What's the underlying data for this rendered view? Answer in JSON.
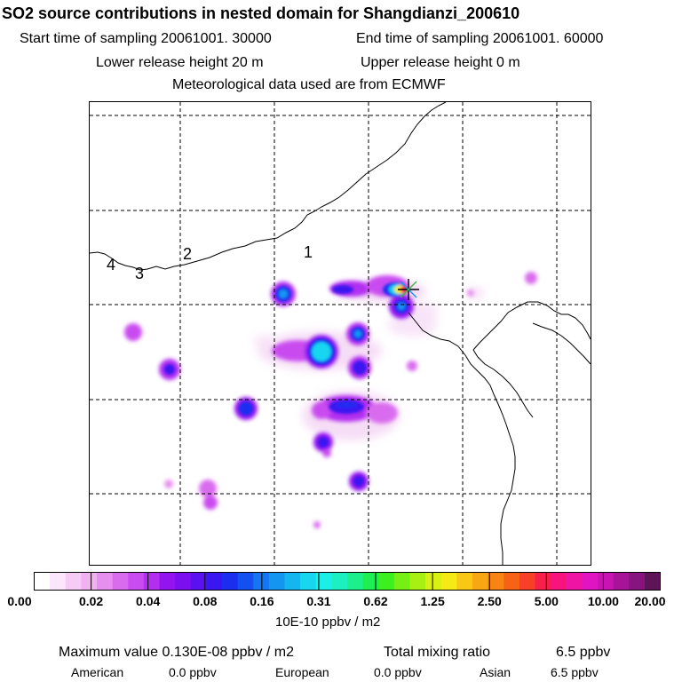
{
  "header": {
    "title": "SO2 source contributions in nested domain for Shangdianzi_200610",
    "start_label": "Start time of sampling 20061001. 30000",
    "end_label": "End time of sampling 20061001. 60000",
    "lower_release": "Lower release height   20 m",
    "upper_release": "Upper release height    0 m",
    "meteo": "Meteorological data used are from ECMWF"
  },
  "map": {
    "contour_labels": [
      "4",
      "3",
      "2",
      "1"
    ],
    "receptor_symbol": "star-cross-marker"
  },
  "colorbar": {
    "tick_labels": [
      "0.00",
      "0.02",
      "0.04",
      "0.08",
      "0.16",
      "0.31",
      "0.62",
      "1.25",
      "2.50",
      "5.00",
      "10.00",
      "20.00"
    ],
    "units": "10E-10 ppbv / m2",
    "colors": [
      "#ffffff",
      "#fbe6fb",
      "#f6ccf6",
      "#f0b3f0",
      "#e68fee",
      "#d96cee",
      "#c94cf0",
      "#b22ff0",
      "#9414f0",
      "#7a10f0",
      "#5a10f0",
      "#3a16f0",
      "#1b2ef0",
      "#1450f0",
      "#1476f0",
      "#1496f0",
      "#14b6f0",
      "#18d6f0",
      "#1cf0e6",
      "#1cf0c0",
      "#1cf08a",
      "#1cf050",
      "#3cf020",
      "#76f014",
      "#a8f014",
      "#d8f014",
      "#f6ea14",
      "#f8c814",
      "#f8a614",
      "#f88414",
      "#f86214",
      "#f84028",
      "#f8204a",
      "#f8147c",
      "#f014a4",
      "#e014c0",
      "#c814b0",
      "#a81498",
      "#881480",
      "#601458"
    ]
  },
  "summary": {
    "max_value": "Maximum value  0.130E-08 ppbv / m2",
    "total_label": "Total mixing ratio",
    "total_value": "6.5 ppbv",
    "american_label": "American",
    "american_value": "0.0 ppbv",
    "european_label": "European",
    "european_value": "0.0 ppbv",
    "asian_label": "Asian",
    "asian_value": "6.5 ppbv"
  }
}
